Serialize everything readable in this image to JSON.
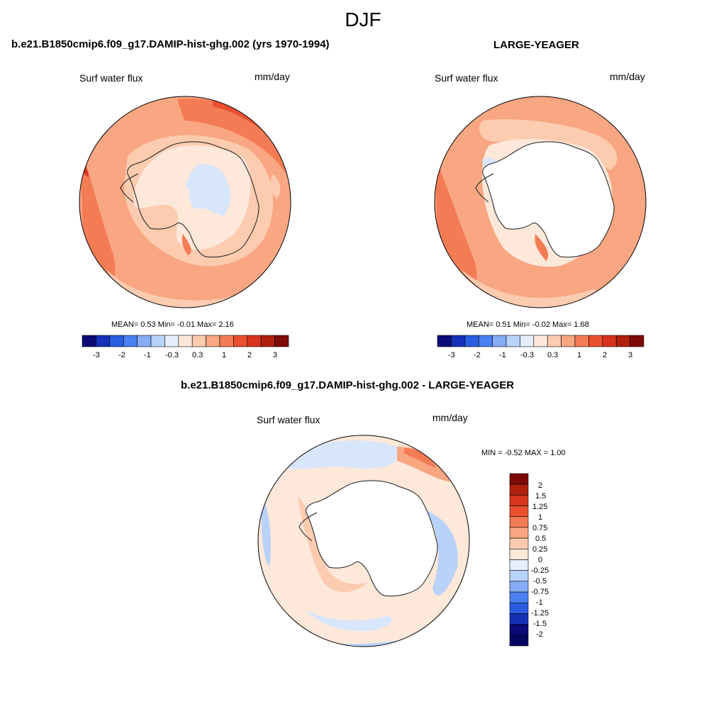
{
  "figure": {
    "title": "DJF"
  },
  "panels": [
    {
      "id": "model",
      "title": "b.e21.B1850cmip6.f09_g17.DAMIP-hist-ghg.002 (yrs 1970-1994)",
      "variable": "Surf water flux",
      "units": "mm/day",
      "stats_text": "MEAN=   0.53  Min=  -0.01  Max=   2.16",
      "colorbar_ticks": [
        "-3",
        "-2",
        "-1",
        "-0.3",
        "0.3",
        "1",
        "2",
        "3"
      ]
    },
    {
      "id": "obs",
      "title": "LARGE-YEAGER",
      "variable": "Surf water flux",
      "units": "mm/day",
      "stats_text": "MEAN=   0.51  Min=  -0.02  Max=   1.68",
      "colorbar_ticks": [
        "-3",
        "-2",
        "-1",
        "-0.3",
        "0.3",
        "1",
        "2",
        "3"
      ]
    },
    {
      "id": "diff",
      "title": "b.e21.B1850cmip6.f09_g17.DAMIP-hist-ghg.002 - LARGE-YEAGER",
      "variable": "Surf water flux",
      "units": "mm/day",
      "stats_text": "MIN =  -0.52 MAX =   1.00",
      "colorbar_labels": [
        "2",
        "1.5",
        "1.25",
        "1",
        "0.75",
        "0.5",
        "0.25",
        "0",
        "-0.25",
        "-0.5",
        "-0.75",
        "-1",
        "-1.25",
        "-1.5",
        "-2"
      ]
    }
  ],
  "colors": {
    "panel_colorbar": [
      "#0a0a78",
      "#1630b8",
      "#2a5de0",
      "#4a80f0",
      "#86acf5",
      "#b9d2fa",
      "#e4eefc",
      "#fde8da",
      "#fccbb0",
      "#f9a683",
      "#f47c55",
      "#ea5030",
      "#d6341c",
      "#b0200f",
      "#7d0a06"
    ],
    "diff_colorbar": [
      "#7d0a06",
      "#b0200f",
      "#d6341c",
      "#ea5030",
      "#f47c55",
      "#f9a683",
      "#fccbb0",
      "#fde8da",
      "#e4eefc",
      "#b9d2fa",
      "#86acf5",
      "#4a80f0",
      "#2a5de0",
      "#1630b8",
      "#0a0a78",
      "#050560"
    ]
  }
}
